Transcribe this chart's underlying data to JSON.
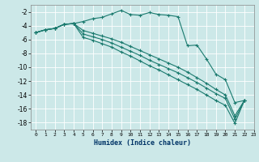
{
  "xlabel": "Humidex (Indice chaleur)",
  "background_color": "#cce8e8",
  "grid_color": "#b8d8d8",
  "line_color": "#1a7a6e",
  "xlim": [
    -0.5,
    23
  ],
  "ylim": [
    -19,
    -1
  ],
  "yticks": [
    -18,
    -16,
    -14,
    -12,
    -10,
    -8,
    -6,
    -4,
    -2
  ],
  "xtick_labels": [
    "0",
    "1",
    "2",
    "3",
    "4",
    "5",
    "6",
    "7",
    "8",
    "9",
    "10",
    "11",
    "12",
    "13",
    "14",
    "15",
    "16",
    "17",
    "18",
    "19",
    "20",
    "21",
    "22",
    "23"
  ],
  "series1_x": [
    0,
    1,
    2,
    3,
    4,
    5,
    6,
    7,
    8,
    9,
    10,
    11,
    12,
    13,
    14,
    15,
    16,
    17,
    18,
    19,
    20,
    21,
    22
  ],
  "series1_y": [
    -5.0,
    -4.6,
    -4.4,
    -3.8,
    -3.7,
    -3.4,
    -3.0,
    -2.8,
    -2.3,
    -1.8,
    -2.4,
    -2.5,
    -2.1,
    -2.4,
    -2.5,
    -2.7,
    -6.9,
    -6.8,
    -8.8,
    -11.0,
    -11.8,
    -15.1,
    -14.8
  ],
  "series2_x": [
    0,
    1,
    2,
    3,
    4,
    5,
    6,
    7,
    8,
    9,
    10,
    11,
    12,
    13,
    14,
    15,
    16,
    17,
    18,
    19,
    20,
    21,
    22
  ],
  "series2_y": [
    -5.0,
    -4.6,
    -4.4,
    -3.8,
    -3.7,
    -5.7,
    -6.1,
    -6.6,
    -7.1,
    -7.8,
    -8.4,
    -9.1,
    -9.8,
    -10.4,
    -11.1,
    -11.8,
    -12.5,
    -13.2,
    -14.0,
    -14.8,
    -15.5,
    -18.1,
    -14.8
  ],
  "series3_x": [
    0,
    1,
    2,
    3,
    4,
    5,
    6,
    7,
    8,
    9,
    10,
    11,
    12,
    13,
    14,
    15,
    16,
    17,
    18,
    19,
    20,
    21,
    22
  ],
  "series3_y": [
    -5.0,
    -4.6,
    -4.4,
    -3.8,
    -3.7,
    -5.2,
    -5.6,
    -6.0,
    -6.5,
    -7.1,
    -7.7,
    -8.3,
    -9.0,
    -9.6,
    -10.2,
    -10.8,
    -11.5,
    -12.2,
    -13.0,
    -13.8,
    -14.5,
    -17.5,
    -14.8
  ],
  "series4_x": [
    0,
    1,
    2,
    3,
    4,
    5,
    6,
    7,
    8,
    9,
    10,
    11,
    12,
    13,
    14,
    15,
    16,
    17,
    18,
    19,
    20,
    21,
    22
  ],
  "series4_y": [
    -5.0,
    -4.6,
    -4.4,
    -3.8,
    -3.7,
    -4.7,
    -5.1,
    -5.5,
    -5.9,
    -6.4,
    -7.0,
    -7.6,
    -8.2,
    -8.8,
    -9.4,
    -10.0,
    -10.7,
    -11.5,
    -12.3,
    -13.2,
    -14.0,
    -17.0,
    -14.8
  ]
}
